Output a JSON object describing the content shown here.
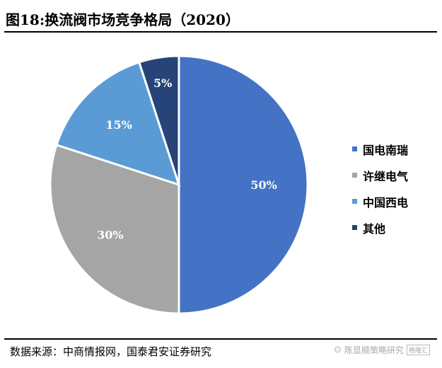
{
  "title": "图18:换流阀市场竞争格局（2020）",
  "source": "数据来源：中商情报网，国泰君安证券研究",
  "watermark": {
    "icon": "wechat-icon",
    "text": "陈显顺策略研究",
    "badge": "格隆汇"
  },
  "chart_data": {
    "type": "pie",
    "title": "图18:换流阀市场竞争格局（2020）",
    "categories": [
      "国电南瑞",
      "许继电气",
      "中国西电",
      "其他"
    ],
    "values": [
      50,
      30,
      15,
      5
    ],
    "labels": [
      "50%",
      "30%",
      "15%",
      "5%"
    ],
    "colors": [
      "#4472C4",
      "#A5A5A5",
      "#5B9BD5",
      "#264478"
    ],
    "legend_position": "right"
  }
}
